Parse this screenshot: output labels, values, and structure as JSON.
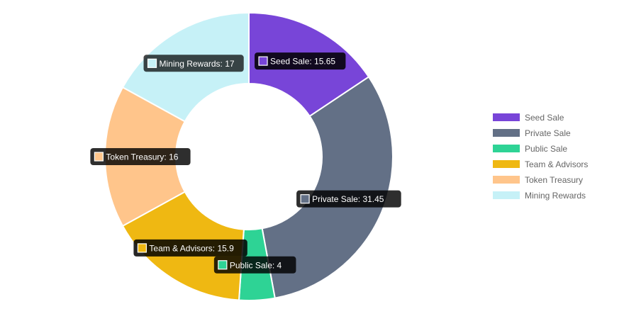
{
  "chart_data": {
    "type": "donut",
    "title": "",
    "legend_position": "right",
    "categories": [
      "Seed Sale",
      "Private Sale",
      "Public Sale",
      "Team & Advisors",
      "Token Treasury",
      "Mining Rewards"
    ],
    "values": [
      15.65,
      31.45,
      4,
      15.9,
      16,
      17
    ],
    "colors": [
      "#7845d8",
      "#637086",
      "#2ed395",
      "#efb812",
      "#ffc58b",
      "#c6f1f7"
    ],
    "tooltip_labels": [
      "Seed Sale: 15.65",
      "Private Sale: 31.45",
      "Public Sale: 4",
      "Team & Advisors: 15.9",
      "Token Treasury: 16",
      "Mining Rewards: 17"
    ]
  }
}
